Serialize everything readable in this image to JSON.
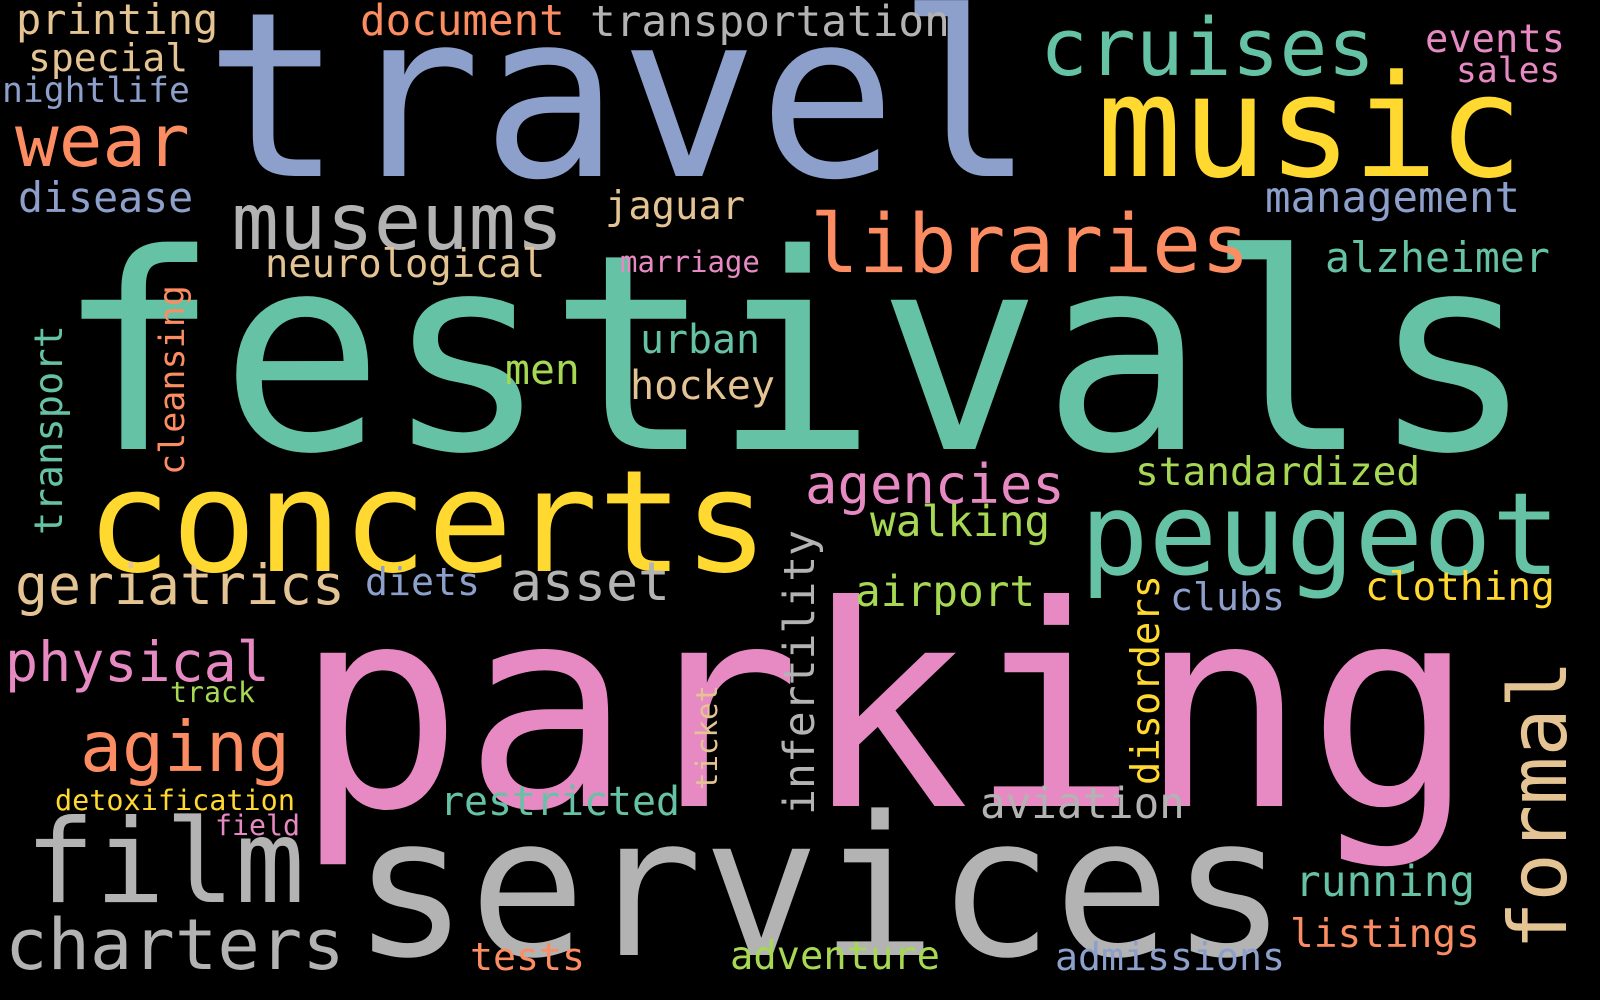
{
  "palette": {
    "background": "#000000",
    "green": "#66c2a5",
    "orange": "#fc8d62",
    "blue": "#8da0cb",
    "pink": "#e78ac3",
    "lime": "#a6d854",
    "yellow": "#ffd92f",
    "tan": "#e5c494",
    "gray": "#b3b3b3"
  },
  "words": [
    {
      "text": "festivals",
      "color": "#66c2a5",
      "orientation": "horizontal"
    },
    {
      "text": "parking",
      "color": "#e78ac3",
      "orientation": "horizontal"
    },
    {
      "text": "travel",
      "color": "#8da0cb",
      "orientation": "horizontal"
    },
    {
      "text": "services",
      "color": "#b3b3b3",
      "orientation": "horizontal"
    },
    {
      "text": "concerts",
      "color": "#ffd92f",
      "orientation": "horizontal"
    },
    {
      "text": "music",
      "color": "#ffd92f",
      "orientation": "horizontal"
    },
    {
      "text": "peugeot",
      "color": "#66c2a5",
      "orientation": "horizontal"
    },
    {
      "text": "film",
      "color": "#b3b3b3",
      "orientation": "horizontal"
    },
    {
      "text": "charters",
      "color": "#b3b3b3",
      "orientation": "horizontal"
    },
    {
      "text": "formal",
      "color": "#e5c494",
      "orientation": "vertical"
    },
    {
      "text": "museums",
      "color": "#b3b3b3",
      "orientation": "horizontal"
    },
    {
      "text": "libraries",
      "color": "#fc8d62",
      "orientation": "horizontal"
    },
    {
      "text": "cruises",
      "color": "#66c2a5",
      "orientation": "horizontal"
    },
    {
      "text": "wear",
      "color": "#fc8d62",
      "orientation": "horizontal"
    },
    {
      "text": "aging",
      "color": "#fc8d62",
      "orientation": "horizontal"
    },
    {
      "text": "geriatrics",
      "color": "#e5c494",
      "orientation": "horizontal"
    },
    {
      "text": "physical",
      "color": "#e78ac3",
      "orientation": "horizontal"
    },
    {
      "text": "asset",
      "color": "#b3b3b3",
      "orientation": "horizontal"
    },
    {
      "text": "agencies",
      "color": "#e78ac3",
      "orientation": "horizontal"
    },
    {
      "text": "infertility",
      "color": "#b3b3b3",
      "orientation": "vertical"
    },
    {
      "text": "aviation",
      "color": "#b3b3b3",
      "orientation": "horizontal"
    },
    {
      "text": "management",
      "color": "#8da0cb",
      "orientation": "horizontal"
    },
    {
      "text": "alzheimer",
      "color": "#66c2a5",
      "orientation": "horizontal"
    },
    {
      "text": "standardized",
      "color": "#a6d854",
      "orientation": "horizontal"
    },
    {
      "text": "walking",
      "color": "#a6d854",
      "orientation": "horizontal"
    },
    {
      "text": "airport",
      "color": "#a6d854",
      "orientation": "horizontal"
    },
    {
      "text": "clothing",
      "color": "#ffd92f",
      "orientation": "horizontal"
    },
    {
      "text": "running",
      "color": "#66c2a5",
      "orientation": "horizontal"
    },
    {
      "text": "listings",
      "color": "#fc8d62",
      "orientation": "horizontal"
    },
    {
      "text": "restricted",
      "color": "#66c2a5",
      "orientation": "horizontal"
    },
    {
      "text": "adventure",
      "color": "#a6d854",
      "orientation": "horizontal"
    },
    {
      "text": "admissions",
      "color": "#8da0cb",
      "orientation": "horizontal"
    },
    {
      "text": "tests",
      "color": "#fc8d62",
      "orientation": "horizontal"
    },
    {
      "text": "disorders",
      "color": "#ffd92f",
      "orientation": "vertical"
    },
    {
      "text": "clubs",
      "color": "#8da0cb",
      "orientation": "horizontal"
    },
    {
      "text": "document",
      "color": "#fc8d62",
      "orientation": "horizontal"
    },
    {
      "text": "transportation",
      "color": "#b3b3b3",
      "orientation": "horizontal"
    },
    {
      "text": "printing",
      "color": "#e5c494",
      "orientation": "horizontal"
    },
    {
      "text": "special",
      "color": "#e5c494",
      "orientation": "horizontal"
    },
    {
      "text": "nightlife",
      "color": "#8da0cb",
      "orientation": "horizontal"
    },
    {
      "text": "disease",
      "color": "#8da0cb",
      "orientation": "horizontal"
    },
    {
      "text": "jaguar",
      "color": "#e5c494",
      "orientation": "horizontal"
    },
    {
      "text": "neurological",
      "color": "#e5c494",
      "orientation": "horizontal"
    },
    {
      "text": "marriage",
      "color": "#e78ac3",
      "orientation": "horizontal"
    },
    {
      "text": "urban",
      "color": "#66c2a5",
      "orientation": "horizontal"
    },
    {
      "text": "hockey",
      "color": "#e5c494",
      "orientation": "horizontal"
    },
    {
      "text": "men",
      "color": "#a6d854",
      "orientation": "horizontal"
    },
    {
      "text": "cleansing",
      "color": "#fc8d62",
      "orientation": "vertical"
    },
    {
      "text": "transport",
      "color": "#66c2a5",
      "orientation": "vertical"
    },
    {
      "text": "diets",
      "color": "#8da0cb",
      "orientation": "horizontal"
    },
    {
      "text": "track",
      "color": "#a6d854",
      "orientation": "horizontal"
    },
    {
      "text": "ticket",
      "color": "#e5c494",
      "orientation": "vertical"
    },
    {
      "text": "detoxification",
      "color": "#ffd92f",
      "orientation": "horizontal"
    },
    {
      "text": "field",
      "color": "#e78ac3",
      "orientation": "horizontal"
    },
    {
      "text": "events",
      "color": "#e78ac3",
      "orientation": "horizontal"
    },
    {
      "text": "sales",
      "color": "#e78ac3",
      "orientation": "horizontal"
    }
  ]
}
